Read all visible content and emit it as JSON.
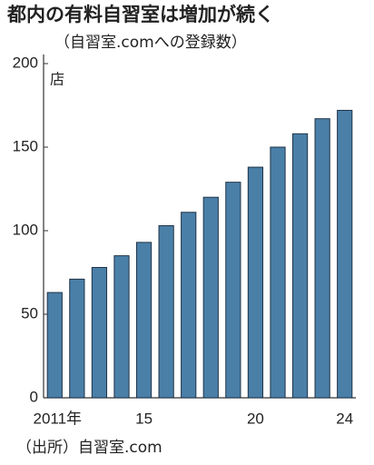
{
  "chart_data": {
    "type": "bar",
    "title": "都内の有料自習室は増加が続く",
    "subtitle": "（自習室.comへの登録数）",
    "y_label": "店",
    "source": "（出所）自習室.com",
    "categories": [
      "2011年",
      null,
      null,
      null,
      "15",
      null,
      null,
      null,
      null,
      "20",
      null,
      null,
      null,
      "24"
    ],
    "values": [
      63,
      71,
      78,
      85,
      93,
      103,
      111,
      120,
      129,
      138,
      150,
      158,
      167,
      172
    ],
    "color": "#4a7fa8",
    "ylim": [
      0,
      200
    ],
    "yticks": [
      0,
      50,
      100,
      150,
      200
    ],
    "grid": false
  }
}
